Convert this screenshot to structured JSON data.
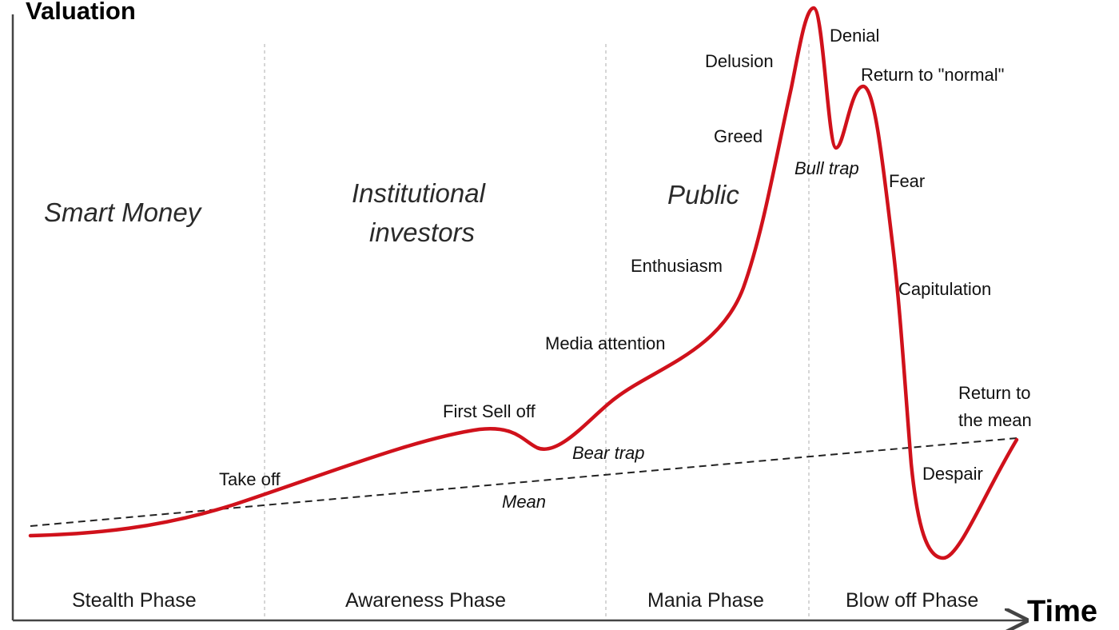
{
  "axes": {
    "y_title": "Valuation",
    "x_title": "Time"
  },
  "groups": [
    "Smart Money",
    [
      "Institutional",
      "investors"
    ],
    "Public"
  ],
  "phases": [
    "Stealth Phase",
    "Awareness Phase",
    "Mania Phase",
    "Blow off Phase"
  ],
  "stages": {
    "take_off": "Take off",
    "first_sell_off": "First Sell off",
    "bear_trap": "Bear trap",
    "mean": "Mean",
    "media_attention": "Media attention",
    "enthusiasm": "Enthusiasm",
    "greed": "Greed",
    "delusion": "Delusion",
    "denial": "Denial",
    "bull_trap": "Bull trap",
    "return_to_normal": "Return to \"normal\"",
    "fear": "Fear",
    "capitulation": "Capitulation",
    "despair": "Despair",
    "return_to_mean": [
      "Return to",
      "the mean"
    ]
  },
  "colors": {
    "curve": "#d0111b",
    "axis": "#444444",
    "mean_line": "#222222",
    "divider": "#c8c8c8"
  }
}
